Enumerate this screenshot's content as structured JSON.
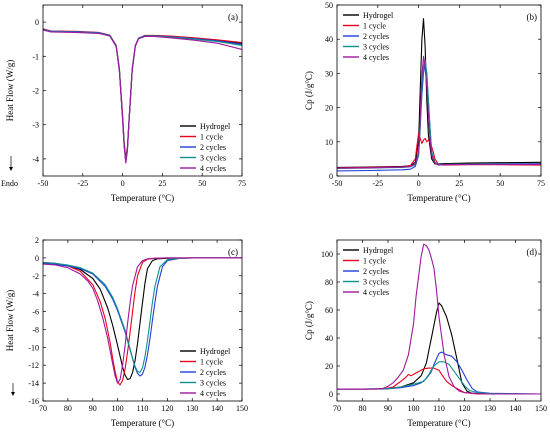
{
  "chart_data": [
    {
      "panel": "(a)",
      "type": "line",
      "title": "",
      "xlabel": "Temperature (°C)",
      "ylabel": "Heat Flow (W/g)",
      "xlim": [
        -50,
        75
      ],
      "ylim": [
        -4.5,
        0.5
      ],
      "xticks": [
        -50,
        -25,
        0,
        25,
        50,
        75
      ],
      "yticks": [
        0,
        -1,
        -2,
        -3,
        -4
      ],
      "note": "Endo",
      "legend_position": "bottom-right",
      "grid": false,
      "series": [
        {
          "name": "Hydrogel",
          "color": "#000000",
          "x": [
            -50,
            -45,
            -30,
            -15,
            -8,
            -4,
            -2,
            0,
            1,
            2,
            3,
            4,
            6,
            8,
            10,
            14,
            20,
            30,
            45,
            60,
            75
          ],
          "y": [
            -0.2,
            -0.27,
            -0.28,
            -0.31,
            -0.4,
            -0.7,
            -1.4,
            -2.8,
            -3.6,
            -4.05,
            -3.7,
            -2.9,
            -1.4,
            -0.7,
            -0.48,
            -0.4,
            -0.4,
            -0.42,
            -0.47,
            -0.53,
            -0.62
          ]
        },
        {
          "name": "1 cycle",
          "color": "#e8001c",
          "x": [
            -50,
            -45,
            -30,
            -15,
            -8,
            -4,
            -2,
            0,
            1,
            2,
            3,
            4,
            6,
            8,
            10,
            14,
            20,
            30,
            45,
            60,
            75
          ],
          "y": [
            -0.2,
            -0.26,
            -0.27,
            -0.3,
            -0.38,
            -0.68,
            -1.35,
            -2.7,
            -3.5,
            -3.98,
            -3.65,
            -2.85,
            -1.35,
            -0.68,
            -0.47,
            -0.39,
            -0.39,
            -0.41,
            -0.46,
            -0.52,
            -0.6
          ]
        },
        {
          "name": "2 cycles",
          "color": "#1f3fd8",
          "x": [
            -50,
            -45,
            -30,
            -15,
            -8,
            -4,
            -2,
            0,
            1,
            2,
            3,
            4,
            6,
            8,
            10,
            14,
            20,
            30,
            45,
            60,
            75
          ],
          "y": [
            -0.21,
            -0.27,
            -0.28,
            -0.31,
            -0.39,
            -0.7,
            -1.4,
            -2.8,
            -3.6,
            -4.08,
            -3.72,
            -2.9,
            -1.38,
            -0.69,
            -0.47,
            -0.4,
            -0.4,
            -0.43,
            -0.48,
            -0.55,
            -0.65
          ]
        },
        {
          "name": "3 cycles",
          "color": "#11908a",
          "x": [
            -50,
            -45,
            -30,
            -15,
            -8,
            -4,
            -2,
            0,
            1,
            2,
            3,
            4,
            6,
            8,
            10,
            14,
            20,
            30,
            45,
            60,
            75
          ],
          "y": [
            -0.22,
            -0.28,
            -0.29,
            -0.32,
            -0.4,
            -0.71,
            -1.42,
            -2.82,
            -3.62,
            -4.1,
            -3.74,
            -2.92,
            -1.4,
            -0.7,
            -0.48,
            -0.41,
            -0.41,
            -0.44,
            -0.5,
            -0.57,
            -0.68
          ]
        },
        {
          "name": "4 cycles",
          "color": "#a0189e",
          "x": [
            -50,
            -45,
            -30,
            -15,
            -8,
            -4,
            -2,
            0,
            1,
            2,
            3,
            4,
            6,
            8,
            10,
            14,
            20,
            30,
            45,
            60,
            75
          ],
          "y": [
            -0.23,
            -0.29,
            -0.3,
            -0.33,
            -0.41,
            -0.72,
            -1.44,
            -2.85,
            -3.65,
            -4.12,
            -3.76,
            -2.94,
            -1.42,
            -0.71,
            -0.49,
            -0.42,
            -0.42,
            -0.46,
            -0.53,
            -0.62,
            -0.8
          ]
        }
      ]
    },
    {
      "panel": "(b)",
      "type": "line",
      "title": "",
      "xlabel": "Temperature (°C)",
      "ylabel": "Cp (J/g°C)",
      "xlim": [
        -50,
        75
      ],
      "ylim": [
        0,
        50
      ],
      "xticks": [
        -50,
        -25,
        0,
        25,
        50,
        75
      ],
      "yticks": [
        0,
        10,
        20,
        30,
        40,
        50
      ],
      "legend_position": "top-left",
      "grid": false,
      "series": [
        {
          "name": "Hydrogel",
          "color": "#000000",
          "x": [
            -50,
            -30,
            -10,
            -5,
            -2,
            0,
            1,
            2,
            3,
            4,
            5,
            6,
            8,
            10,
            15,
            30,
            50,
            75
          ],
          "y": [
            2.5,
            2.6,
            2.8,
            3.0,
            4.0,
            10,
            25,
            40,
            46,
            38,
            22,
            12,
            5,
            3.5,
            3.6,
            3.8,
            3.9,
            4.0
          ]
        },
        {
          "name": "1 cycle",
          "color": "#e8001c",
          "x": [
            -50,
            -30,
            -10,
            -5,
            -2,
            -1,
            0,
            1,
            2,
            3,
            4,
            5,
            6,
            7,
            8,
            9,
            10,
            12,
            15,
            30,
            50,
            75
          ],
          "y": [
            2.4,
            2.5,
            2.7,
            3.0,
            5.0,
            9,
            12.5,
            11,
            9.5,
            10.5,
            11,
            10,
            10.5,
            9.8,
            8.5,
            7,
            5,
            3.5,
            3.2,
            3.3,
            3.3,
            3.2
          ]
        },
        {
          "name": "2 cycles",
          "color": "#1f3fd8",
          "x": [
            -50,
            -30,
            -10,
            -5,
            -2,
            0,
            1,
            2,
            3,
            4,
            5,
            6,
            7,
            8,
            10,
            12,
            15,
            30,
            50,
            75
          ],
          "y": [
            1.5,
            1.6,
            1.8,
            2.0,
            2.8,
            6,
            14,
            24,
            30,
            33,
            30,
            22,
            14,
            7,
            3.8,
            3.2,
            3.3,
            3.5,
            3.6,
            3.6
          ]
        },
        {
          "name": "3 cycles",
          "color": "#11908a",
          "x": [
            -50,
            -30,
            -10,
            -5,
            -2,
            0,
            1,
            2,
            3,
            4,
            5,
            6,
            7,
            8,
            10,
            12,
            15,
            30,
            50,
            75
          ],
          "y": [
            2.2,
            2.3,
            2.5,
            2.7,
            3.3,
            6.5,
            15,
            26,
            32,
            34,
            30,
            22,
            14,
            7,
            4.0,
            3.4,
            3.4,
            3.5,
            3.5,
            3.4
          ]
        },
        {
          "name": "4 cycles",
          "color": "#a0189e",
          "x": [
            -50,
            -30,
            -10,
            -5,
            -2,
            0,
            1,
            2,
            3,
            4,
            5,
            6,
            7,
            8,
            10,
            12,
            15,
            30,
            50,
            75
          ],
          "y": [
            2.3,
            2.4,
            2.6,
            2.8,
            3.5,
            7,
            17,
            29,
            35,
            32,
            26,
            18,
            11,
            6,
            3.8,
            3.3,
            3.3,
            3.4,
            3.4,
            3.4
          ]
        }
      ]
    },
    {
      "panel": "(c)",
      "type": "line",
      "title": "",
      "xlabel": "Temperature (°C)",
      "ylabel": "Heat Flow (W/g)",
      "xlim": [
        70,
        150
      ],
      "ylim": [
        -16,
        2
      ],
      "xticks": [
        70,
        80,
        90,
        100,
        110,
        120,
        130,
        140,
        150
      ],
      "yticks": [
        2,
        0,
        -2,
        -4,
        -6,
        -8,
        -10,
        -12,
        -14,
        -16
      ],
      "legend_position": "bottom-right",
      "grid": false,
      "series": [
        {
          "name": "Hydrogel",
          "color": "#000000",
          "x": [
            70,
            75,
            80,
            85,
            90,
            93,
            96,
            98,
            100,
            102,
            103,
            104,
            105,
            106,
            107,
            108,
            109,
            110,
            111,
            112,
            114,
            116,
            120,
            130,
            150
          ],
          "y": [
            -0.6,
            -0.7,
            -0.9,
            -1.3,
            -2.3,
            -3.5,
            -5.6,
            -7.5,
            -9.8,
            -12.2,
            -13.1,
            -13.6,
            -13.5,
            -12.8,
            -11.5,
            -9.6,
            -7.3,
            -5.0,
            -2.8,
            -1.2,
            -0.3,
            -0.1,
            -0.05,
            0,
            0
          ]
        },
        {
          "name": "1 cycle",
          "color": "#e8001c",
          "x": [
            70,
            75,
            80,
            85,
            90,
            93,
            95,
            97,
            98,
            99,
            100,
            101,
            102,
            103,
            104,
            105,
            106,
            107,
            108,
            110,
            112,
            115,
            120,
            130,
            150
          ],
          "y": [
            -0.5,
            -0.6,
            -0.9,
            -1.5,
            -3.0,
            -4.9,
            -6.8,
            -9.5,
            -11.2,
            -12.7,
            -13.9,
            -14.2,
            -13.7,
            -12.4,
            -10.5,
            -8.3,
            -6.0,
            -3.8,
            -2.0,
            -0.5,
            -0.15,
            -0.05,
            0,
            0,
            0
          ]
        },
        {
          "name": "2 cycles",
          "color": "#1f3fd8",
          "x": [
            70,
            75,
            80,
            85,
            90,
            95,
            98,
            100,
            103,
            105,
            107,
            108,
            109,
            110,
            111,
            112,
            113,
            114,
            115,
            116,
            118,
            120,
            125,
            130,
            150
          ],
          "y": [
            -0.6,
            -0.7,
            -0.9,
            -1.2,
            -1.8,
            -3.2,
            -4.6,
            -5.9,
            -8.3,
            -10.3,
            -12.2,
            -12.9,
            -13.2,
            -13.0,
            -12.2,
            -10.8,
            -9.0,
            -7.0,
            -5.0,
            -3.2,
            -1.0,
            -0.3,
            -0.05,
            0,
            0
          ]
        },
        {
          "name": "3 cycles",
          "color": "#11908a",
          "x": [
            70,
            75,
            80,
            85,
            90,
            95,
            98,
            100,
            103,
            105,
            106,
            107,
            108,
            109,
            110,
            111,
            112,
            113,
            114,
            115,
            117,
            120,
            125,
            130,
            150
          ],
          "y": [
            -0.5,
            -0.6,
            -0.8,
            -1.1,
            -1.7,
            -3.0,
            -4.4,
            -5.7,
            -8.1,
            -10.2,
            -11.2,
            -12.1,
            -12.7,
            -12.8,
            -12.3,
            -11.0,
            -9.2,
            -7.1,
            -5.0,
            -3.2,
            -1.0,
            -0.2,
            -0.05,
            0,
            0
          ]
        },
        {
          "name": "4 cycles",
          "color": "#a0189e",
          "x": [
            70,
            75,
            80,
            85,
            88,
            90,
            92,
            94,
            96,
            98,
            99,
            100,
            101,
            102,
            103,
            104,
            105,
            106,
            108,
            110,
            112,
            115,
            120,
            130,
            150
          ],
          "y": [
            -0.7,
            -0.8,
            -1.1,
            -1.8,
            -2.6,
            -3.4,
            -4.8,
            -6.7,
            -9.0,
            -11.8,
            -13.2,
            -14.0,
            -13.6,
            -12.0,
            -9.8,
            -7.3,
            -5.0,
            -3.1,
            -1.0,
            -0.3,
            -0.1,
            -0.03,
            0,
            0,
            0
          ]
        }
      ]
    },
    {
      "panel": "(d)",
      "type": "line",
      "title": "",
      "xlabel": "Temperature (°C)",
      "ylabel": "Cp (J/g°C)",
      "xlim": [
        70,
        150
      ],
      "ylim": [
        -5,
        110
      ],
      "xticks": [
        70,
        80,
        90,
        100,
        110,
        120,
        130,
        140,
        150
      ],
      "yticks": [
        0,
        20,
        40,
        60,
        80,
        100
      ],
      "legend_position": "top-left",
      "grid": false,
      "series": [
        {
          "name": "Hydrogel",
          "color": "#000000",
          "x": [
            70,
            80,
            90,
            95,
            100,
            103,
            105,
            107,
            109,
            110,
            111,
            113,
            115,
            117,
            119,
            121,
            123,
            130,
            150
          ],
          "y": [
            3.5,
            3.5,
            3.8,
            5,
            8,
            13,
            22,
            40,
            58,
            65,
            63,
            55,
            42,
            25,
            8,
            2,
            0.5,
            0,
            0
          ]
        },
        {
          "name": "1 cycle",
          "color": "#e8001c",
          "x": [
            70,
            80,
            88,
            92,
            95,
            97,
            98,
            99,
            100,
            102,
            104,
            106,
            108,
            110,
            111,
            113,
            115,
            118,
            120,
            125,
            130,
            150
          ],
          "y": [
            3.5,
            3.5,
            3.5,
            5,
            9,
            12,
            14,
            13,
            14,
            16,
            18,
            18.5,
            18.5,
            17,
            14,
            9,
            6,
            3,
            1,
            0,
            0,
            0
          ]
        },
        {
          "name": "2 cycles",
          "color": "#1f3fd8",
          "x": [
            70,
            80,
            90,
            95,
            100,
            103,
            105,
            107,
            108,
            109,
            110,
            111,
            113,
            115,
            117,
            119,
            121,
            123,
            125,
            130,
            150
          ],
          "y": [
            3.5,
            3.5,
            3.7,
            4.5,
            6,
            8,
            11,
            16,
            21,
            25,
            29,
            30,
            28,
            27,
            23,
            17,
            10,
            4,
            1.5,
            0.5,
            0
          ]
        },
        {
          "name": "3 cycles",
          "color": "#11908a",
          "x": [
            70,
            80,
            90,
            95,
            100,
            104,
            106,
            108,
            110,
            112,
            114,
            116,
            118,
            120,
            122,
            125,
            130,
            150
          ],
          "y": [
            3.5,
            3.5,
            3.8,
            5,
            7,
            9,
            14,
            20,
            23,
            23,
            21,
            16,
            11,
            6,
            2.5,
            1,
            0.3,
            0
          ]
        },
        {
          "name": "4 cycles",
          "color": "#a0189e",
          "x": [
            70,
            80,
            85,
            88,
            90,
            92,
            94,
            96,
            98,
            100,
            101,
            103,
            104,
            105,
            106,
            107,
            108,
            109,
            110,
            112,
            114,
            116,
            118,
            120,
            125,
            130,
            150
          ],
          "y": [
            3.5,
            3.5,
            3.5,
            4,
            5.5,
            8,
            12,
            17,
            28,
            50,
            70,
            98,
            107,
            106,
            103,
            97,
            90,
            75,
            55,
            28,
            12,
            5,
            2,
            1,
            0.3,
            0,
            0
          ]
        }
      ]
    }
  ]
}
